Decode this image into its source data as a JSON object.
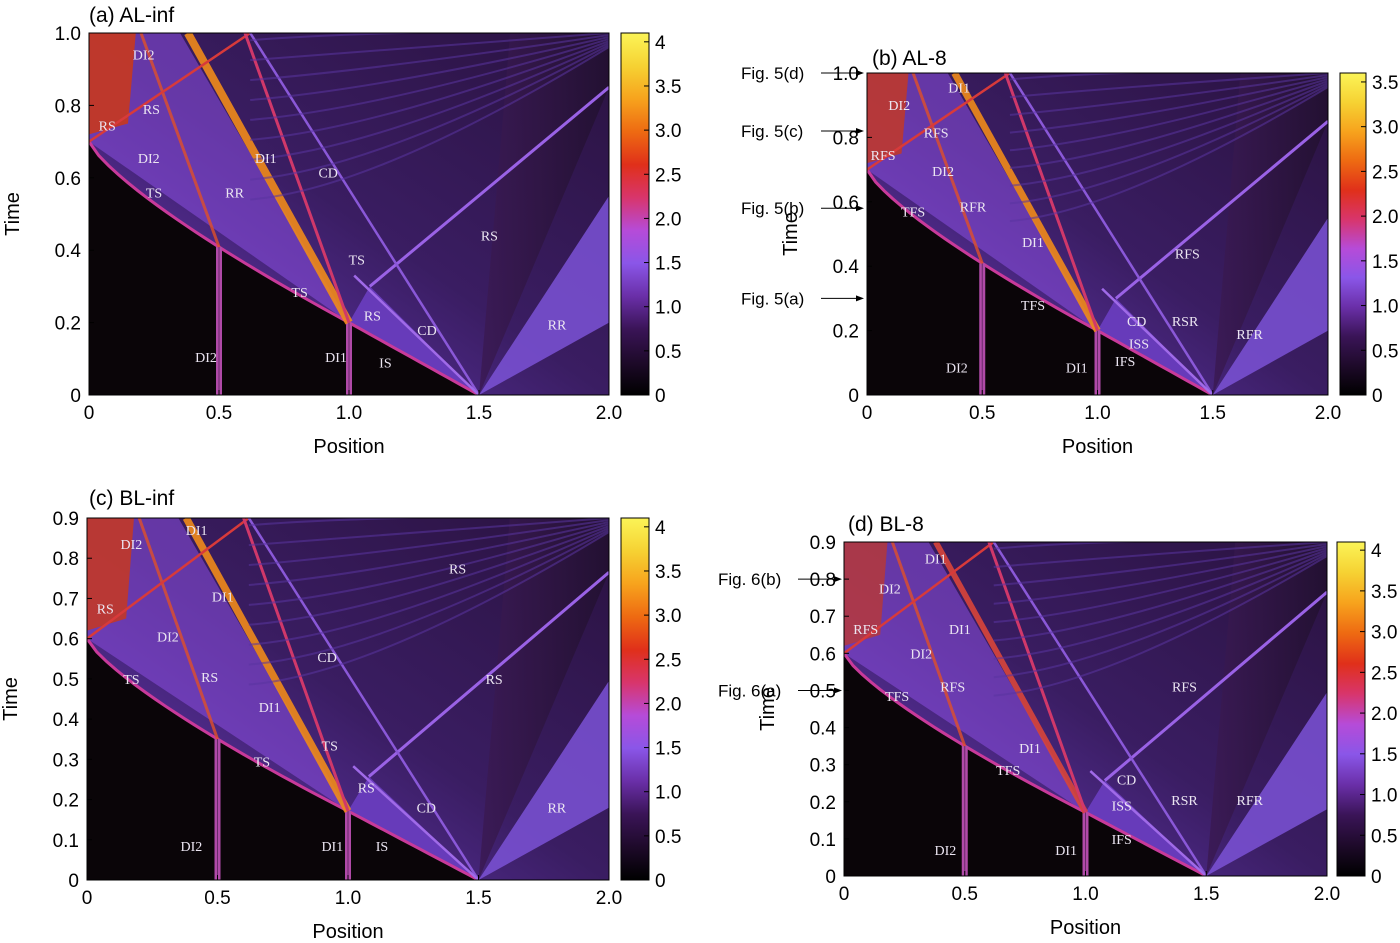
{
  "colorbar_stops": [
    "#000000",
    "#1e0a2a",
    "#3a1457",
    "#6a2fa8",
    "#8a56e8",
    "#b64bd8",
    "#d8356c",
    "#e0301a",
    "#ee6a12",
    "#f7a31d",
    "#f6d233",
    "#fbf457"
  ],
  "chart_data": [
    {
      "type": "heatmap",
      "title": "(a) AL-inf",
      "xlabel": "Position",
      "ylabel": "Time",
      "xlim": [
        0,
        2.0
      ],
      "ylim": [
        0,
        1.0
      ],
      "xticks": [
        "0",
        "0.5",
        "1.0",
        "1.5",
        "2.0"
      ],
      "xtick_values": [
        0,
        0.5,
        1.0,
        1.5,
        2.0
      ],
      "yticks": [
        "0",
        "0.2",
        "0.4",
        "0.6",
        "0.8",
        "1.0"
      ],
      "ytick_values": [
        0,
        0.2,
        0.4,
        0.6,
        0.8,
        1.0
      ],
      "colorbar": {
        "ticks": [
          "0",
          "0.5",
          "1.0",
          "1.5",
          "2.0",
          "2.5",
          "3.0",
          "3.5",
          "4"
        ],
        "tick_values": [
          0,
          0.5,
          1.0,
          1.5,
          2.0,
          2.5,
          3.0,
          3.5,
          4.0
        ],
        "range": [
          0,
          4.1
        ]
      },
      "t0": 0.7,
      "hot": 1,
      "annotations": [
        {
          "text": "DI2",
          "x": 0.21,
          "y": 0.94
        },
        {
          "text": "RS",
          "x": 0.07,
          "y": 0.745
        },
        {
          "text": "RS",
          "x": 0.24,
          "y": 0.79
        },
        {
          "text": "DI2",
          "x": 0.23,
          "y": 0.655
        },
        {
          "text": "DI1",
          "x": 0.68,
          "y": 0.655
        },
        {
          "text": "CD",
          "x": 0.92,
          "y": 0.615
        },
        {
          "text": "TS",
          "x": 0.25,
          "y": 0.56
        },
        {
          "text": "RR",
          "x": 0.56,
          "y": 0.56
        },
        {
          "text": "RS",
          "x": 1.54,
          "y": 0.44
        },
        {
          "text": "TS",
          "x": 1.03,
          "y": 0.375
        },
        {
          "text": "TS",
          "x": 0.81,
          "y": 0.285
        },
        {
          "text": "RS",
          "x": 1.09,
          "y": 0.22
        },
        {
          "text": "CD",
          "x": 1.3,
          "y": 0.18
        },
        {
          "text": "RR",
          "x": 1.8,
          "y": 0.195
        },
        {
          "text": "DI2",
          "x": 0.45,
          "y": 0.105
        },
        {
          "text": "DI1",
          "x": 0.95,
          "y": 0.105
        },
        {
          "text": "IS",
          "x": 1.14,
          "y": 0.09
        }
      ],
      "callouts": []
    },
    {
      "type": "heatmap",
      "title": "(b) AL-8",
      "xlabel": "Position",
      "ylabel": "Time",
      "xlim": [
        0,
        2.0
      ],
      "ylim": [
        0,
        1.0
      ],
      "xticks": [
        "0",
        "0.5",
        "1.0",
        "1.5",
        "2.0"
      ],
      "xtick_values": [
        0,
        0.5,
        1.0,
        1.5,
        2.0
      ],
      "yticks": [
        "0",
        "0.2",
        "0.4",
        "0.6",
        "0.8",
        "1.0"
      ],
      "ytick_values": [
        0,
        0.2,
        0.4,
        0.6,
        0.8,
        1.0
      ],
      "colorbar": {
        "ticks": [
          "0",
          "0.5",
          "1.0",
          "1.5",
          "2.0",
          "2.5",
          "3.0",
          "3.5"
        ],
        "tick_values": [
          0,
          0.5,
          1.0,
          1.5,
          2.0,
          2.5,
          3.0,
          3.5
        ],
        "range": [
          0,
          3.6
        ]
      },
      "t0": 0.7,
      "hot": 0.75,
      "annotations": [
        {
          "text": "DI1",
          "x": 0.4,
          "y": 0.955
        },
        {
          "text": "DI2",
          "x": 0.14,
          "y": 0.9
        },
        {
          "text": "RFS",
          "x": 0.3,
          "y": 0.815
        },
        {
          "text": "RFS",
          "x": 0.07,
          "y": 0.745
        },
        {
          "text": "DI2",
          "x": 0.33,
          "y": 0.695
        },
        {
          "text": "TFS",
          "x": 0.2,
          "y": 0.57
        },
        {
          "text": "RFR",
          "x": 0.46,
          "y": 0.585
        },
        {
          "text": "DI1",
          "x": 0.72,
          "y": 0.475
        },
        {
          "text": "RFS",
          "x": 1.39,
          "y": 0.44
        },
        {
          "text": "TFS",
          "x": 0.72,
          "y": 0.28
        },
        {
          "text": "CD",
          "x": 1.17,
          "y": 0.23
        },
        {
          "text": "RSR",
          "x": 1.38,
          "y": 0.23
        },
        {
          "text": "ISS",
          "x": 1.18,
          "y": 0.16
        },
        {
          "text": "RFR",
          "x": 1.66,
          "y": 0.19
        },
        {
          "text": "IFS",
          "x": 1.12,
          "y": 0.105
        },
        {
          "text": "DI2",
          "x": 0.39,
          "y": 0.085
        },
        {
          "text": "DI1",
          "x": 0.91,
          "y": 0.085
        }
      ],
      "callouts": [
        {
          "text": "Fig. 5(d)",
          "time": 1.0
        },
        {
          "text": "Fig. 5(c)",
          "time": 0.82
        },
        {
          "text": "Fig. 5(b)",
          "time": 0.58
        },
        {
          "text": "Fig. 5(a)",
          "time": 0.3
        }
      ]
    },
    {
      "type": "heatmap",
      "title": "(c) BL-inf",
      "xlabel": "Position",
      "ylabel": "Time",
      "xlim": [
        0,
        2.0
      ],
      "ylim": [
        0,
        0.9
      ],
      "xticks": [
        "0",
        "0.5",
        "1.0",
        "1.5",
        "2.0"
      ],
      "xtick_values": [
        0,
        0.5,
        1.0,
        1.5,
        2.0
      ],
      "yticks": [
        "0",
        "0.1",
        "0.2",
        "0.3",
        "0.4",
        "0.5",
        "0.6",
        "0.7",
        "0.8",
        "0.9"
      ],
      "ytick_values": [
        0,
        0.1,
        0.2,
        0.3,
        0.4,
        0.5,
        0.6,
        0.7,
        0.8,
        0.9
      ],
      "colorbar": {
        "ticks": [
          "0",
          "0.5",
          "1.0",
          "1.5",
          "2.0",
          "2.5",
          "3.0",
          "3.5",
          "4"
        ],
        "tick_values": [
          0,
          0.5,
          1.0,
          1.5,
          2.0,
          2.5,
          3.0,
          3.5,
          4.0
        ],
        "range": [
          0,
          4.1
        ]
      },
      "t0": 0.6,
      "hot": 0.85,
      "annotations": [
        {
          "text": "DI2",
          "x": 0.17,
          "y": 0.835
        },
        {
          "text": "DI1",
          "x": 0.42,
          "y": 0.87
        },
        {
          "text": "RS",
          "x": 0.07,
          "y": 0.675
        },
        {
          "text": "DI1",
          "x": 0.52,
          "y": 0.705
        },
        {
          "text": "RS",
          "x": 1.42,
          "y": 0.775
        },
        {
          "text": "DI2",
          "x": 0.31,
          "y": 0.605
        },
        {
          "text": "CD",
          "x": 0.92,
          "y": 0.555
        },
        {
          "text": "TS",
          "x": 0.17,
          "y": 0.5
        },
        {
          "text": "RS",
          "x": 0.47,
          "y": 0.505
        },
        {
          "text": "RS",
          "x": 1.56,
          "y": 0.5
        },
        {
          "text": "DI1",
          "x": 0.7,
          "y": 0.43
        },
        {
          "text": "TS",
          "x": 0.93,
          "y": 0.335
        },
        {
          "text": "TS",
          "x": 0.67,
          "y": 0.295
        },
        {
          "text": "RS",
          "x": 1.07,
          "y": 0.23
        },
        {
          "text": "CD",
          "x": 1.3,
          "y": 0.18
        },
        {
          "text": "RR",
          "x": 1.8,
          "y": 0.18
        },
        {
          "text": "DI2",
          "x": 0.4,
          "y": 0.085
        },
        {
          "text": "DI1",
          "x": 0.94,
          "y": 0.085
        },
        {
          "text": "IS",
          "x": 1.13,
          "y": 0.085
        }
      ],
      "callouts": []
    },
    {
      "type": "heatmap",
      "title": "(d) BL-8",
      "xlabel": "Position",
      "ylabel": "Time",
      "xlim": [
        0,
        2.0
      ],
      "ylim": [
        0,
        0.9
      ],
      "xticks": [
        "0",
        "0.5",
        "1.0",
        "1.5",
        "2.0"
      ],
      "xtick_values": [
        0,
        0.5,
        1.0,
        1.5,
        2.0
      ],
      "yticks": [
        "0",
        "0.1",
        "0.2",
        "0.3",
        "0.4",
        "0.5",
        "0.6",
        "0.7",
        "0.8",
        "0.9"
      ],
      "ytick_values": [
        0,
        0.1,
        0.2,
        0.3,
        0.4,
        0.5,
        0.6,
        0.7,
        0.8,
        0.9
      ],
      "colorbar": {
        "ticks": [
          "0",
          "0.5",
          "1.0",
          "1.5",
          "2.0",
          "2.5",
          "3.0",
          "3.5",
          "4"
        ],
        "tick_values": [
          0,
          0.5,
          1.0,
          1.5,
          2.0,
          2.5,
          3.0,
          3.5,
          4.0
        ],
        "range": [
          0,
          4.1
        ]
      },
      "t0": 0.6,
      "hot": 0.45,
      "annotations": [
        {
          "text": "DI1",
          "x": 0.38,
          "y": 0.855
        },
        {
          "text": "DI2",
          "x": 0.19,
          "y": 0.775
        },
        {
          "text": "RFS",
          "x": 0.09,
          "y": 0.665
        },
        {
          "text": "DI1",
          "x": 0.48,
          "y": 0.665
        },
        {
          "text": "DI2",
          "x": 0.32,
          "y": 0.6
        },
        {
          "text": "TFS",
          "x": 0.22,
          "y": 0.485
        },
        {
          "text": "RFS",
          "x": 0.45,
          "y": 0.51
        },
        {
          "text": "RFS",
          "x": 1.41,
          "y": 0.51
        },
        {
          "text": "DI1",
          "x": 0.77,
          "y": 0.345
        },
        {
          "text": "TFS",
          "x": 0.68,
          "y": 0.285
        },
        {
          "text": "CD",
          "x": 1.17,
          "y": 0.26
        },
        {
          "text": "ISS",
          "x": 1.15,
          "y": 0.19
        },
        {
          "text": "RSR",
          "x": 1.41,
          "y": 0.205
        },
        {
          "text": "RFR",
          "x": 1.68,
          "y": 0.205
        },
        {
          "text": "IFS",
          "x": 1.15,
          "y": 0.1
        },
        {
          "text": "DI2",
          "x": 0.42,
          "y": 0.07
        },
        {
          "text": "DI1",
          "x": 0.92,
          "y": 0.07
        }
      ],
      "callouts": [
        {
          "text": "Fig. 6(b)",
          "time": 0.8
        },
        {
          "text": "Fig. 6(a)",
          "time": 0.5
        }
      ]
    }
  ]
}
